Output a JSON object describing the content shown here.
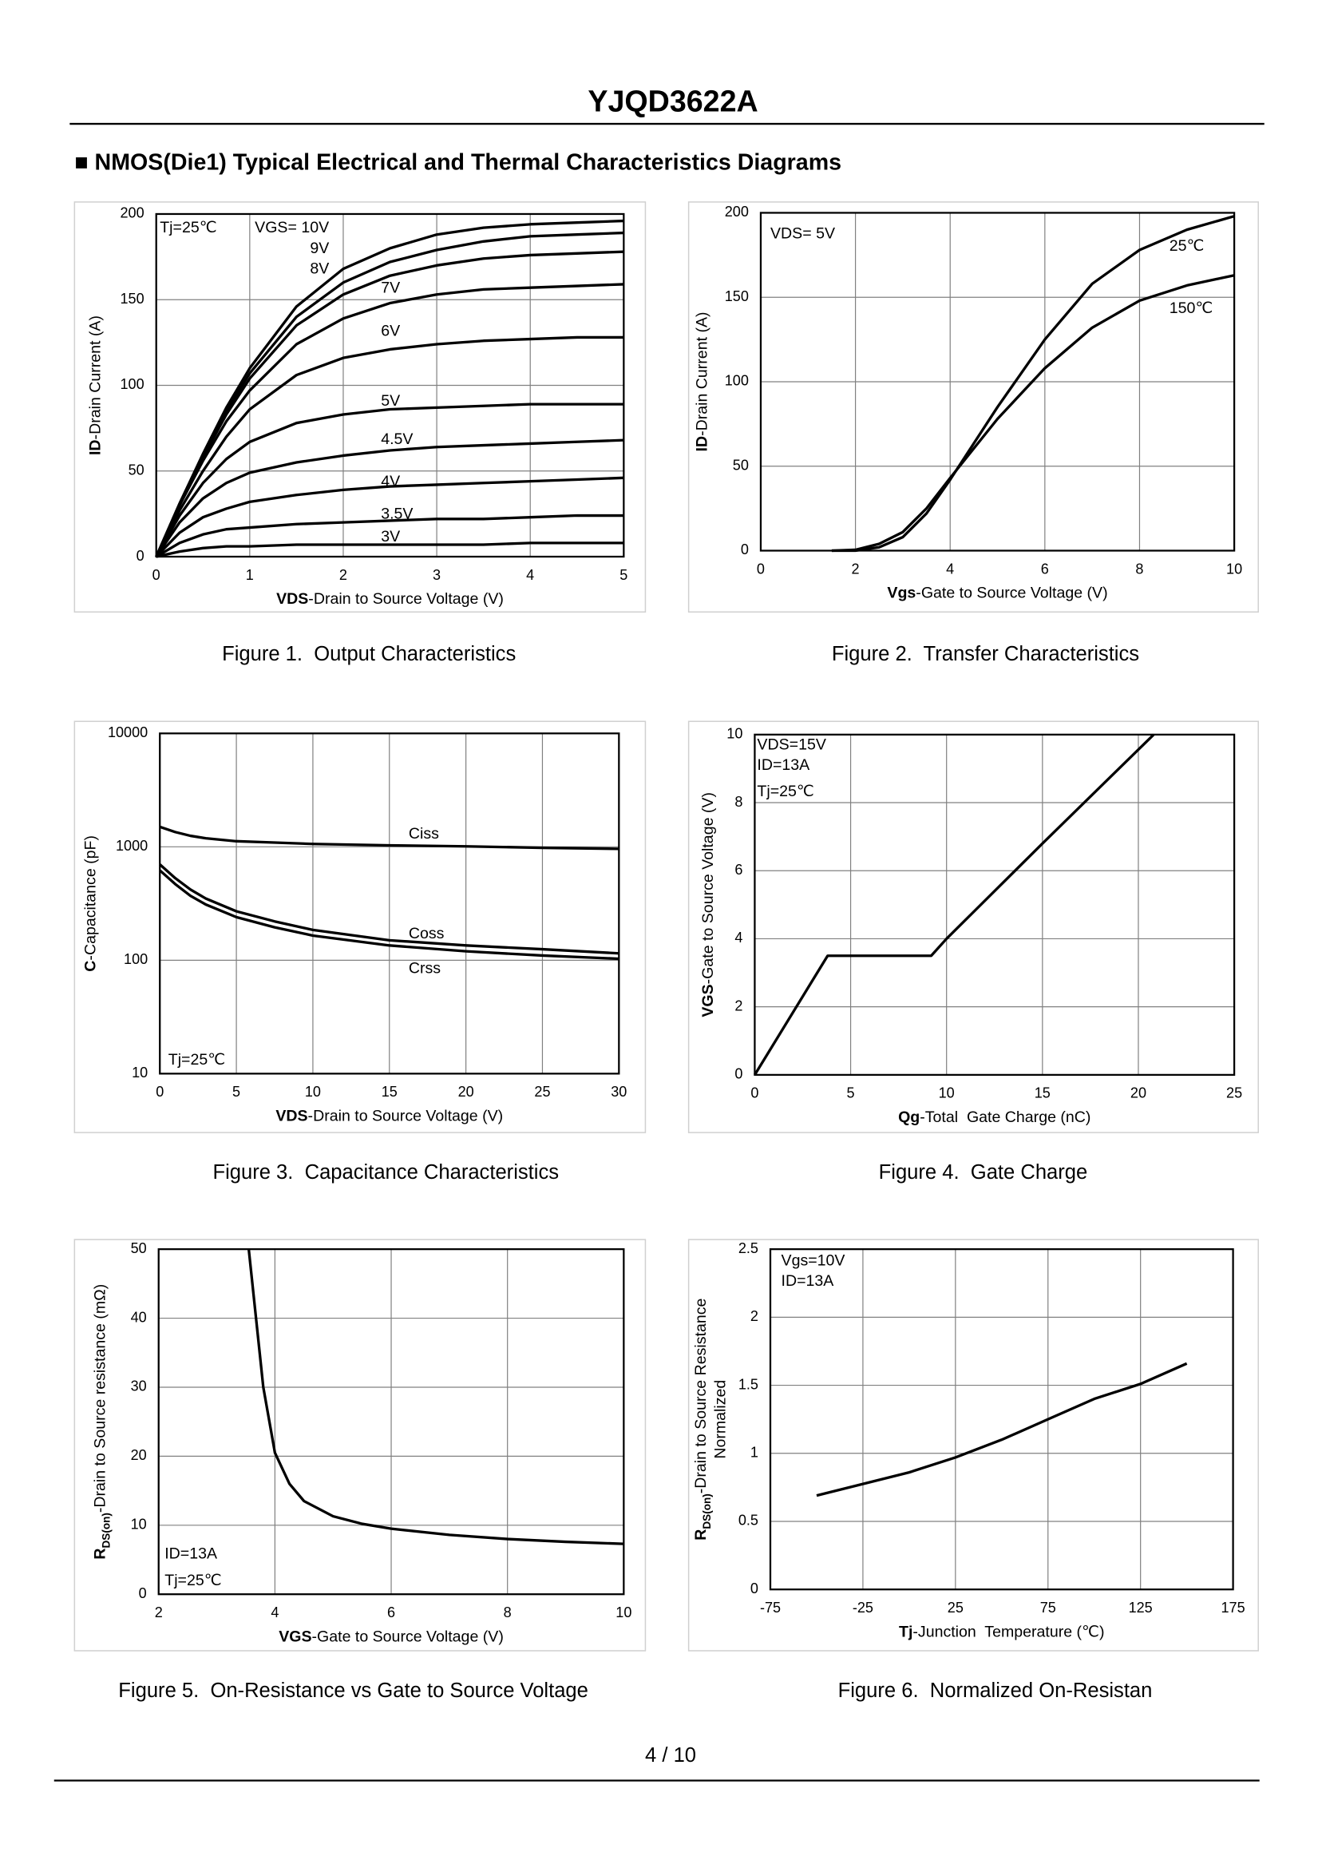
{
  "header": {
    "title": "YJQD3622A",
    "section": "■ NMOS(Die1) Typical Electrical and Thermal Characteristics Diagrams"
  },
  "footer": {
    "page": "4 / 10"
  },
  "chart_data": [
    {
      "type": "line",
      "caption": "Figure 1.  Output Characteristics",
      "xlabel": {
        "bold": "VDS",
        "text": "-Drain to Source Voltage (V)"
      },
      "ylabel": {
        "bold": "ID",
        "text": "-Drain Current (A)"
      },
      "annotations": [
        "Tj=25℃"
      ],
      "x": [
        0,
        0.25,
        0.5,
        0.75,
        1,
        1.5,
        2,
        2.5,
        3,
        3.5,
        4,
        4.5,
        5
      ],
      "series": [
        {
          "name": "VGS= 10V",
          "color": "#000000",
          "values": [
            0,
            31,
            60,
            87,
            110,
            146,
            168,
            180,
            188,
            192,
            194,
            195,
            196
          ]
        },
        {
          "name": "9V",
          "color": "#000000",
          "values": [
            0,
            31,
            59,
            85,
            107,
            140,
            160,
            172,
            179,
            184,
            187,
            188,
            189
          ]
        },
        {
          "name": "8V",
          "color": "#000000",
          "values": [
            0,
            30,
            58,
            83,
            104,
            135,
            153,
            164,
            170,
            174,
            176,
            177,
            178
          ]
        },
        {
          "name": "7V",
          "color": "#000000",
          "values": [
            0,
            30,
            56,
            79,
            97,
            124,
            139,
            148,
            153,
            156,
            157,
            158,
            159
          ]
        },
        {
          "name": "6V",
          "color": "#000000",
          "values": [
            0,
            27,
            50,
            70,
            86,
            106,
            116,
            121,
            124,
            126,
            127,
            128,
            128
          ]
        },
        {
          "name": "5V",
          "color": "#000000",
          "values": [
            0,
            24,
            43,
            57,
            67,
            78,
            83,
            86,
            87,
            88,
            89,
            89,
            89
          ]
        },
        {
          "name": "4.5V",
          "color": "#000000",
          "values": [
            0,
            20,
            34,
            43,
            49,
            55,
            59,
            62,
            64,
            65,
            66,
            67,
            68
          ]
        },
        {
          "name": "4V",
          "color": "#000000",
          "values": [
            0,
            14,
            23,
            28,
            32,
            36,
            39,
            41,
            42,
            43,
            44,
            45,
            46
          ]
        },
        {
          "name": "3.5V",
          "color": "#000000",
          "values": [
            0,
            8,
            13,
            16,
            17,
            19,
            20,
            21,
            22,
            22,
            23,
            24,
            24
          ]
        },
        {
          "name": "3V",
          "color": "#000000",
          "values": [
            0,
            3,
            5,
            6,
            6,
            7,
            7,
            7,
            7,
            7,
            8,
            8,
            8
          ]
        }
      ],
      "xlim": [
        0,
        5
      ],
      "ylim": [
        0,
        200
      ],
      "xticks": [
        0,
        1,
        2,
        3,
        4,
        5
      ],
      "yticks": [
        0,
        50,
        100,
        150,
        200
      ],
      "grid": true
    },
    {
      "type": "line",
      "caption": "Figure 2.  Transfer Characteristics",
      "xlabel": {
        "bold": "Vgs",
        "text": "-Gate to Source Voltage (V)"
      },
      "ylabel": {
        "bold": "ID",
        "text": "-Drain Current (A)"
      },
      "annotations": [
        "VDS= 5V"
      ],
      "x": [
        1.5,
        2,
        2.5,
        3,
        3.5,
        4,
        5,
        6,
        7,
        8,
        9,
        10
      ],
      "series": [
        {
          "name": "25℃",
          "color": "#000000",
          "values": [
            0,
            0,
            2,
            8,
            22,
            42,
            85,
            125,
            158,
            178,
            190,
            198
          ]
        },
        {
          "name": "150℃",
          "color": "#000000",
          "values": [
            0,
            0.5,
            4,
            11,
            25,
            43,
            78,
            108,
            132,
            148,
            157,
            163
          ]
        }
      ],
      "xlim": [
        0,
        10
      ],
      "ylim": [
        0,
        200
      ],
      "xticks": [
        0,
        2,
        4,
        6,
        8,
        10
      ],
      "yticks": [
        0,
        50,
        100,
        150,
        200
      ],
      "grid": true
    },
    {
      "type": "line",
      "caption": "Figure 3.  Capacitance Characteristics",
      "xlabel": {
        "bold": "VDS",
        "text": "-Drain to Source Voltage (V)"
      },
      "ylabel": {
        "bold": "C",
        "text": "-Capacitance (pF)"
      },
      "annotations": [
        "Tj=25℃"
      ],
      "x": [
        0,
        1,
        2,
        3,
        5,
        7.5,
        10,
        15,
        20,
        25,
        30
      ],
      "series": [
        {
          "name": "Ciss",
          "color": "#000000",
          "values": [
            1500,
            1350,
            1250,
            1190,
            1120,
            1090,
            1060,
            1030,
            1010,
            980,
            960
          ]
        },
        {
          "name": "Coss",
          "color": "#000000",
          "values": [
            700,
            530,
            420,
            350,
            270,
            220,
            185,
            150,
            135,
            125,
            115
          ]
        },
        {
          "name": "Crss",
          "color": "#000000",
          "values": [
            620,
            470,
            370,
            310,
            240,
            195,
            165,
            135,
            120,
            110,
            103
          ]
        }
      ],
      "ylog": true,
      "xlim": [
        0,
        30
      ],
      "ylim": [
        10,
        10000
      ],
      "xticks": [
        0,
        5,
        10,
        15,
        20,
        25,
        30
      ],
      "yticks": [
        10,
        100,
        1000,
        10000
      ],
      "grid": true
    },
    {
      "type": "line",
      "caption": "Figure 4.  Gate Charge",
      "xlabel": {
        "bold": "Qg",
        "text": "-Total  Gate Charge (nC)"
      },
      "ylabel": {
        "bold": "VGS",
        "text": "-Gate to Source Voltage (V)"
      },
      "annotations": [
        "VDS=15V",
        "ID=13A",
        "Tj=25℃"
      ],
      "x": [
        0,
        3.8,
        9.2,
        10,
        15,
        20.8
      ],
      "values": [
        0,
        3.5,
        3.5,
        4,
        6.8,
        10
      ],
      "color": "#000000",
      "xlim": [
        0,
        25
      ],
      "ylim": [
        0,
        10
      ],
      "xticks": [
        0,
        5,
        10,
        15,
        20,
        25
      ],
      "yticks": [
        0,
        2,
        4,
        6,
        8,
        10
      ],
      "grid": true
    },
    {
      "type": "line",
      "caption": "Figure 5.  On-Resistance vs Gate to Source Voltage",
      "xlabel": {
        "bold": "VGS",
        "text": "-Gate to Source Voltage (V)"
      },
      "ylabel": {
        "bold": "R",
        "sub": "DS(on)",
        "text": "-Drain to Source resistance (mΩ)"
      },
      "annotations": [
        "ID=13A",
        "Tj=25℃"
      ],
      "x": [
        3.55,
        3.7,
        3.8,
        4,
        4.25,
        4.5,
        5,
        5.5,
        6,
        7,
        8,
        9,
        10
      ],
      "values": [
        50,
        38,
        30,
        20.5,
        16,
        13.5,
        11.3,
        10.2,
        9.5,
        8.6,
        8,
        7.6,
        7.3
      ],
      "color": "#000000",
      "xlim": [
        2,
        10
      ],
      "ylim": [
        0,
        50
      ],
      "xticks": [
        2,
        4,
        6,
        8,
        10
      ],
      "yticks": [
        0,
        10,
        20,
        30,
        40,
        50
      ],
      "grid": true
    },
    {
      "type": "line",
      "caption": "Figure 6.  Normalized On-Resistan",
      "xlabel": {
        "bold": "Tj",
        "text": "-Junction  Temperature (℃)"
      },
      "ylabel": {
        "bold": "R",
        "sub": "DS(on)",
        "text": "-Drain to Source Resistance",
        "text2": "Normalized"
      },
      "annotations": [
        "Vgs=10V",
        "ID=13A"
      ],
      "x": [
        -50,
        0,
        25,
        50,
        75,
        100,
        125,
        150
      ],
      "values": [
        0.69,
        0.86,
        0.97,
        1.1,
        1.25,
        1.4,
        1.51,
        1.66
      ],
      "color": "#000000",
      "xlim": [
        -75,
        175
      ],
      "ylim": [
        0,
        2.5
      ],
      "xticks": [
        -75,
        -25,
        25,
        75,
        125,
        175
      ],
      "yticks": [
        0,
        0.5,
        1,
        1.5,
        2,
        2.5
      ],
      "grid": true
    }
  ]
}
